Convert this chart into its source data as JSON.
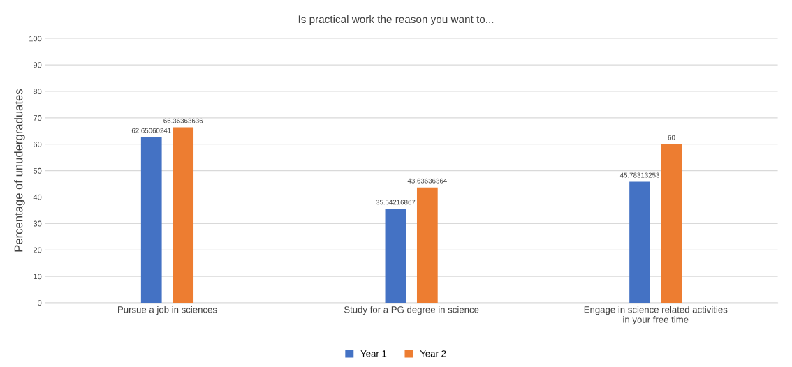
{
  "chart_data": {
    "type": "bar",
    "title": "Is practical work the reason you want to...",
    "ylabel": "Percentage of unudergraduates",
    "categories": [
      "Pursue a job in sciences",
      "Study for a PG degree in science",
      "Engage in science related activities\nin your free time"
    ],
    "series": [
      {
        "name": "Year 1",
        "color": "#4472c4",
        "values": [
          62.65060241,
          35.54216867,
          45.78313253
        ]
      },
      {
        "name": "Year 2",
        "color": "#ed7d31",
        "values": [
          66.36363636,
          43.63636364,
          60
        ]
      }
    ],
    "ylim": [
      0,
      100
    ],
    "yticks": [
      0,
      10,
      20,
      30,
      40,
      50,
      60,
      70,
      80,
      90,
      100
    ],
    "grid": "y",
    "legend": "bottom",
    "data_labels": true
  }
}
